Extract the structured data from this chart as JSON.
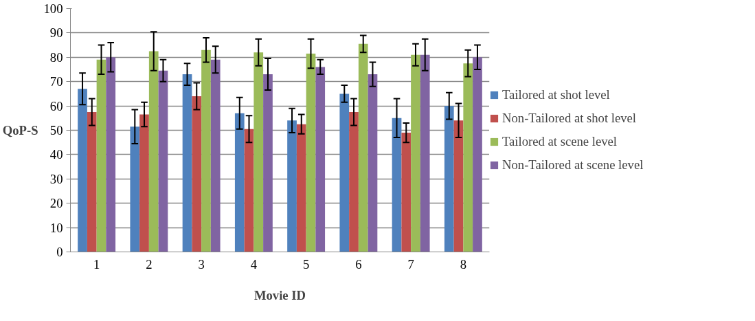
{
  "chart_data": {
    "type": "bar",
    "xlabel": "Movie ID",
    "ylabel": "QoP-S",
    "categories": [
      "1",
      "2",
      "3",
      "4",
      "5",
      "6",
      "7",
      "8"
    ],
    "series": [
      {
        "name": "Tailored at shot level",
        "color": "#4f81bd",
        "values": [
          67,
          51.5,
          73,
          57,
          54,
          65,
          55,
          60
        ],
        "errors": [
          6.5,
          7,
          4.5,
          6.5,
          5,
          3.5,
          8,
          5.5
        ]
      },
      {
        "name": "Non-Tailored at shot level",
        "color": "#c0504d",
        "values": [
          57.5,
          56.5,
          64,
          50.5,
          52.5,
          57.5,
          49,
          54
        ],
        "errors": [
          5.5,
          5,
          5.5,
          5.5,
          4,
          5.5,
          4,
          7
        ]
      },
      {
        "name": "Tailored at scene level",
        "color": "#9bbb59",
        "values": [
          79,
          82.5,
          83,
          82,
          81.5,
          85.5,
          81,
          77.5
        ],
        "errors": [
          6,
          8,
          5,
          5.5,
          6,
          3.5,
          4.5,
          5.5
        ]
      },
      {
        "name": "Non-Tailored at scene level",
        "color": "#8064a2",
        "values": [
          80,
          74.5,
          79,
          73,
          76,
          73,
          81,
          80
        ],
        "errors": [
          6,
          4.5,
          5.5,
          6.5,
          3,
          5,
          6.5,
          5
        ]
      }
    ],
    "ylim": [
      0,
      100
    ],
    "yticks": [
      0,
      10,
      20,
      30,
      40,
      50,
      60,
      70,
      80,
      90,
      100
    ],
    "grid": "y",
    "legend": "right"
  }
}
